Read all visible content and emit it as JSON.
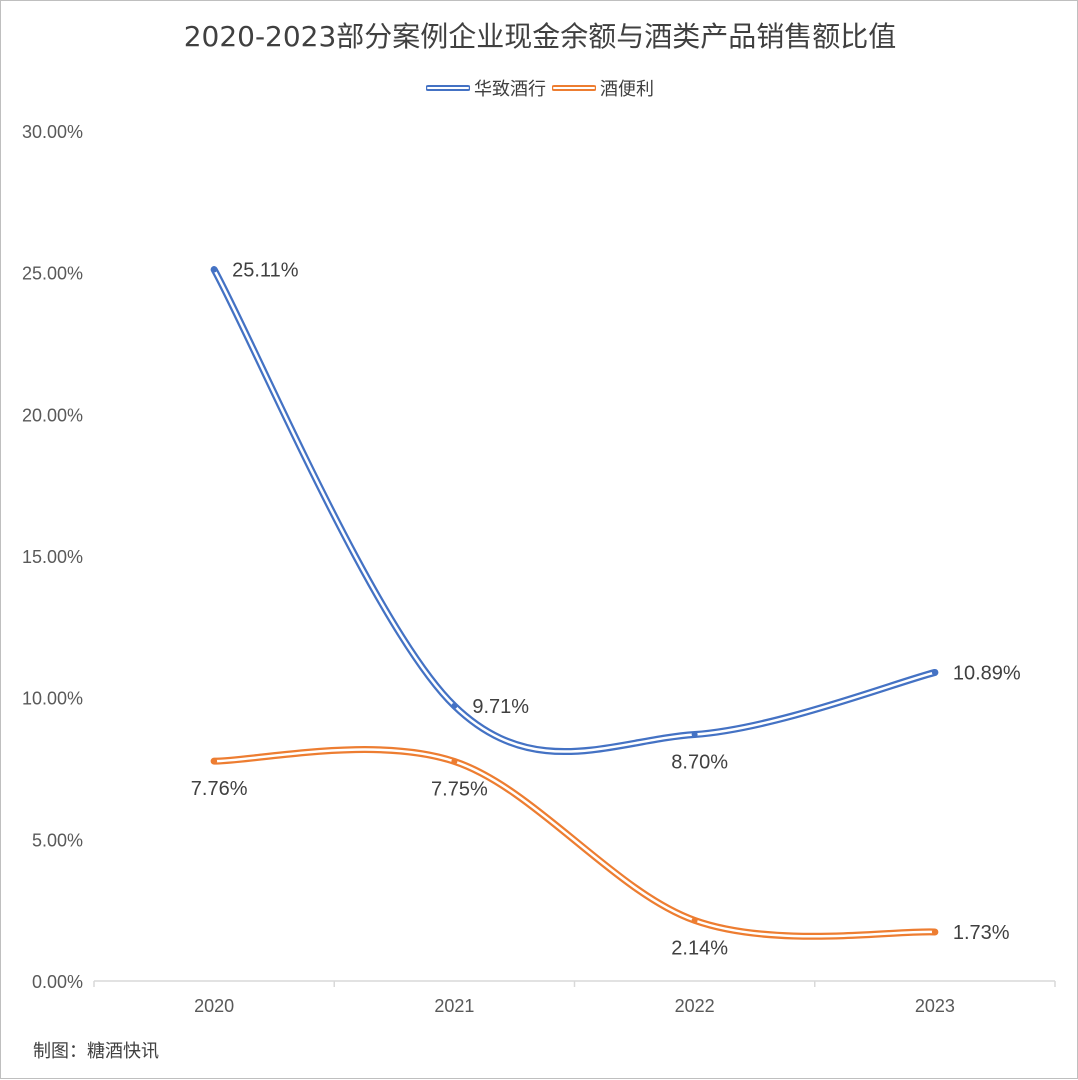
{
  "title": "2020-2023部分案例企业现金余额与酒类产品销售额比值",
  "footer": "制图：糖酒快讯",
  "chart_data": {
    "type": "line",
    "title": "2020-2023部分案例企业现金余额与酒类产品销售额比值",
    "categories": [
      "2020",
      "2021",
      "2022",
      "2023"
    ],
    "y_ticks": [
      "0.00%",
      "5.00%",
      "10.00%",
      "15.00%",
      "20.00%",
      "25.00%",
      "30.00%"
    ],
    "ylim": [
      0,
      30
    ],
    "grid": false,
    "legend_position": "top",
    "smooth": true,
    "series": [
      {
        "name": "华致酒行",
        "color": "#4472c4",
        "values": [
          25.11,
          9.71,
          8.7,
          10.89
        ],
        "labels": [
          "25.11%",
          "9.71%",
          "8.70%",
          "10.89%"
        ],
        "label_positions": [
          "right",
          "right",
          "below",
          "right"
        ]
      },
      {
        "name": "酒便利",
        "color": "#ed7d31",
        "values": [
          7.76,
          7.75,
          2.14,
          1.73
        ],
        "labels": [
          "7.76%",
          "7.75%",
          "2.14%",
          "1.73%"
        ],
        "label_positions": [
          "below",
          "below",
          "below",
          "right"
        ]
      }
    ]
  }
}
